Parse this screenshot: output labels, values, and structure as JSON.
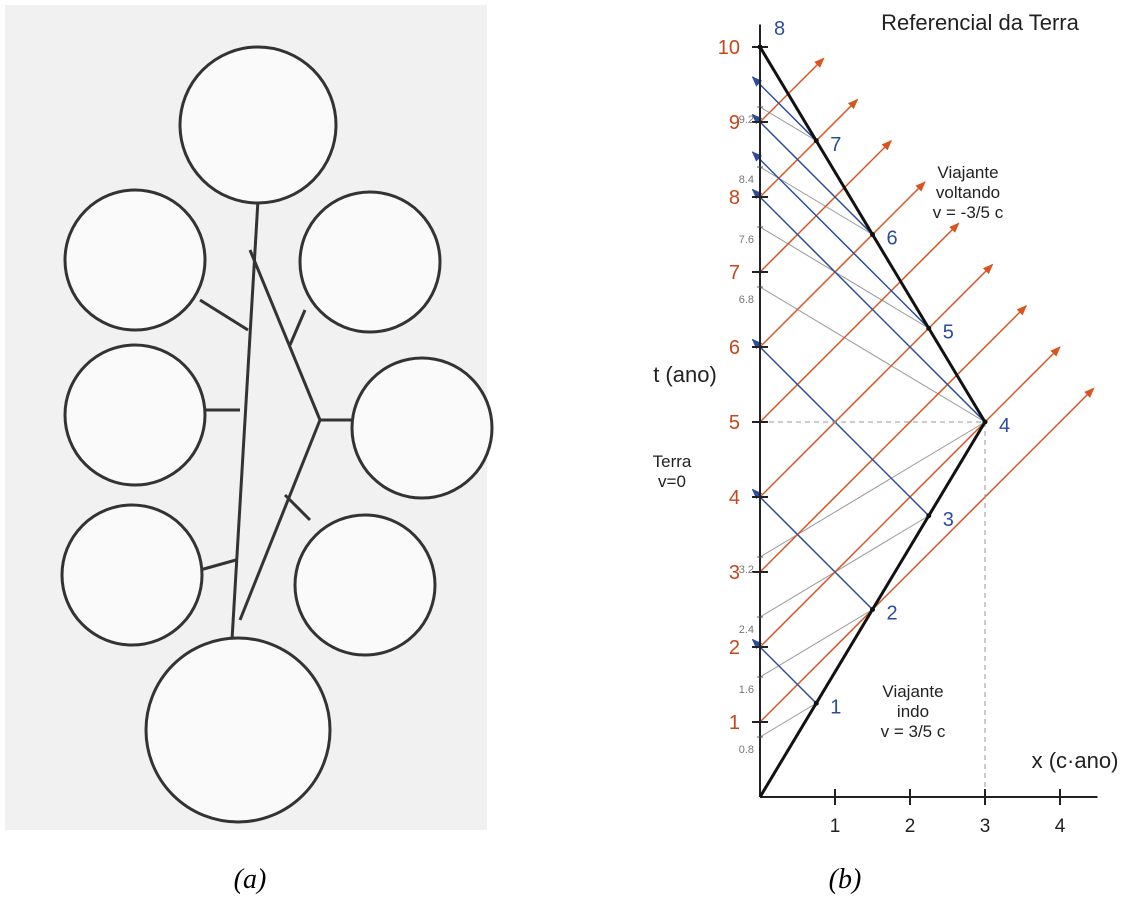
{
  "panel_a": {
    "caption": "(a)"
  },
  "panel_b": {
    "caption": "(b)",
    "title": "Referencial da Terra",
    "x_label": "x (c·ano)",
    "t_label": "t (ano)",
    "earth_label": [
      "Terra",
      "v=0"
    ],
    "outbound_label": [
      "Viajante",
      "indo",
      "v = 3/5 c"
    ],
    "return_label": [
      "Viajante",
      "voltando",
      "v = -3/5 c"
    ],
    "xticks": [
      1,
      2,
      3,
      4
    ],
    "earth_ticks": [
      1,
      2,
      3,
      4,
      5,
      6,
      7,
      8,
      9,
      10
    ],
    "earth_sub_ticks": [
      0.8,
      1.6,
      2.4,
      3.2,
      6.8,
      7.6,
      8.4,
      9.2
    ],
    "traveler_ticks": [
      1,
      2,
      3,
      4,
      5,
      6,
      7,
      8
    ]
  }
}
